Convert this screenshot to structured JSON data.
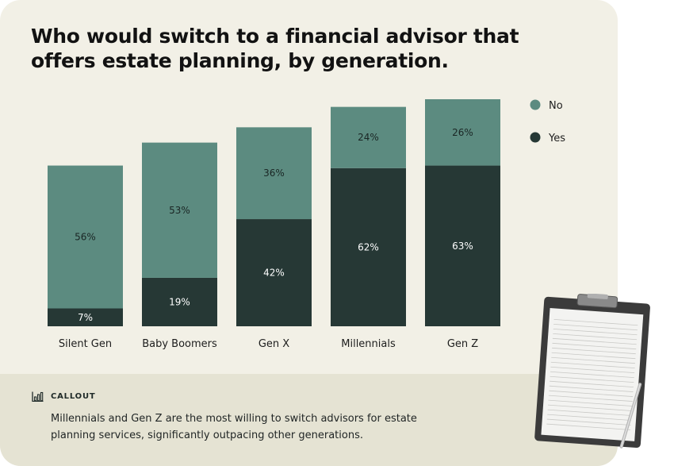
{
  "title": "Who would switch to a financial advisor that offers estate planning, by generation.",
  "chart_data": {
    "type": "bar",
    "stacked": true,
    "categories": [
      "Silent Gen",
      "Baby Boomers",
      "Gen X",
      "Millennials",
      "Gen Z"
    ],
    "series": [
      {
        "name": "Yes",
        "values": [
          7,
          19,
          42,
          62,
          63
        ],
        "color": "#263835"
      },
      {
        "name": "No",
        "values": [
          56,
          53,
          36,
          24,
          26
        ],
        "color": "#5c8b80"
      }
    ],
    "legend_order": [
      "No",
      "Yes"
    ],
    "value_suffix": "%",
    "ylim": [
      0,
      89
    ],
    "legend_position": "top-right",
    "grid": false
  },
  "callout": {
    "label": "CALLOUT",
    "icon": "bar-chart-icon",
    "text": "Millennials and Gen Z are the most willing to switch advisors for estate planning services, significantly outpacing other generations."
  }
}
